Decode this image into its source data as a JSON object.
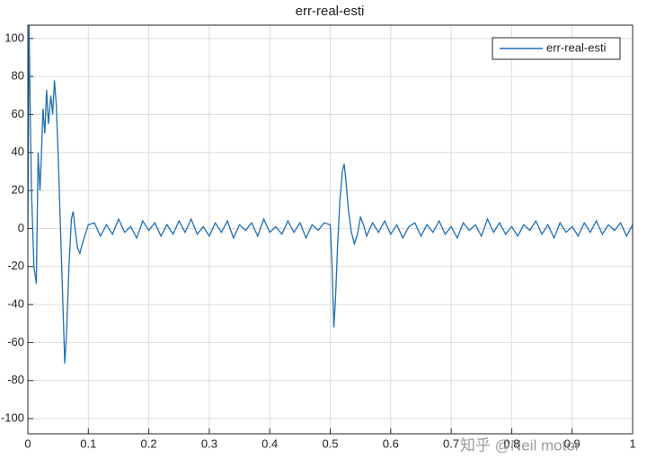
{
  "chart_data": {
    "type": "line",
    "title": "err-real-esti",
    "x": [
      0,
      0.002,
      0.004,
      0.006,
      0.01,
      0.014,
      0.017,
      0.02,
      0.022,
      0.025,
      0.028,
      0.031,
      0.034,
      0.038,
      0.041,
      0.044,
      0.047,
      0.05,
      0.054,
      0.058,
      0.061,
      0.064,
      0.068,
      0.072,
      0.075,
      0.078,
      0.082,
      0.086,
      0.09,
      0.095,
      0.1,
      0.11,
      0.12,
      0.13,
      0.14,
      0.15,
      0.16,
      0.17,
      0.18,
      0.19,
      0.2,
      0.21,
      0.22,
      0.23,
      0.24,
      0.25,
      0.26,
      0.27,
      0.28,
      0.29,
      0.3,
      0.31,
      0.32,
      0.33,
      0.34,
      0.35,
      0.36,
      0.37,
      0.38,
      0.39,
      0.4,
      0.41,
      0.42,
      0.43,
      0.44,
      0.45,
      0.46,
      0.47,
      0.48,
      0.49,
      0.5,
      0.503,
      0.506,
      0.509,
      0.512,
      0.516,
      0.52,
      0.523,
      0.526,
      0.53,
      0.535,
      0.54,
      0.545,
      0.55,
      0.555,
      0.56,
      0.57,
      0.58,
      0.59,
      0.6,
      0.61,
      0.62,
      0.63,
      0.64,
      0.65,
      0.66,
      0.67,
      0.68,
      0.69,
      0.7,
      0.71,
      0.72,
      0.73,
      0.74,
      0.75,
      0.76,
      0.77,
      0.78,
      0.79,
      0.8,
      0.81,
      0.82,
      0.83,
      0.84,
      0.85,
      0.86,
      0.87,
      0.88,
      0.89,
      0.9,
      0.91,
      0.92,
      0.93,
      0.94,
      0.95,
      0.96,
      0.97,
      0.98,
      0.99,
      1
    ],
    "series": [
      {
        "name": "err-real-esti",
        "color": "#1f6fb4",
        "values": [
          0,
          107,
          60,
          20,
          -20,
          -29,
          40,
          20,
          35,
          63,
          50,
          73,
          55,
          70,
          60,
          78,
          65,
          40,
          0,
          -40,
          -71,
          -55,
          -20,
          5,
          9,
          0,
          -10,
          -13,
          -8,
          -3,
          2,
          3,
          -4,
          2,
          -3,
          5,
          -2,
          1,
          -5,
          4,
          -1,
          3,
          -4,
          2,
          -3,
          4,
          -2,
          5,
          -3,
          1,
          -4,
          3,
          -2,
          4,
          -5,
          2,
          -1,
          3,
          -4,
          5,
          -2,
          1,
          -3,
          4,
          -2,
          3,
          -5,
          2,
          -1,
          3,
          2,
          -20,
          -52,
          -35,
          -10,
          15,
          30,
          34,
          25,
          10,
          -2,
          -8,
          -3,
          6,
          2,
          -4,
          3,
          -2,
          4,
          -3,
          2,
          -5,
          1,
          3,
          -4,
          2,
          -2,
          4,
          -3,
          1,
          -5,
          3,
          -1,
          2,
          -4,
          5,
          -2,
          3,
          -3,
          1,
          -4,
          2,
          -1,
          4,
          -3,
          2,
          -5,
          3,
          -2,
          1,
          -4,
          3,
          -2,
          4,
          -3,
          2,
          -1,
          3,
          -4,
          2
        ]
      }
    ],
    "xlim": [
      0,
      1
    ],
    "ylim": [
      -108,
      107
    ],
    "xticks": [
      0,
      0.1,
      0.2,
      0.3,
      0.4,
      0.5,
      0.6,
      0.7,
      0.8,
      0.9,
      1
    ],
    "yticks": [
      -100,
      -80,
      -60,
      -40,
      -20,
      0,
      20,
      40,
      60,
      80,
      100
    ],
    "grid": true,
    "legend": "top-right"
  },
  "watermark": "知乎 @Neil motor"
}
